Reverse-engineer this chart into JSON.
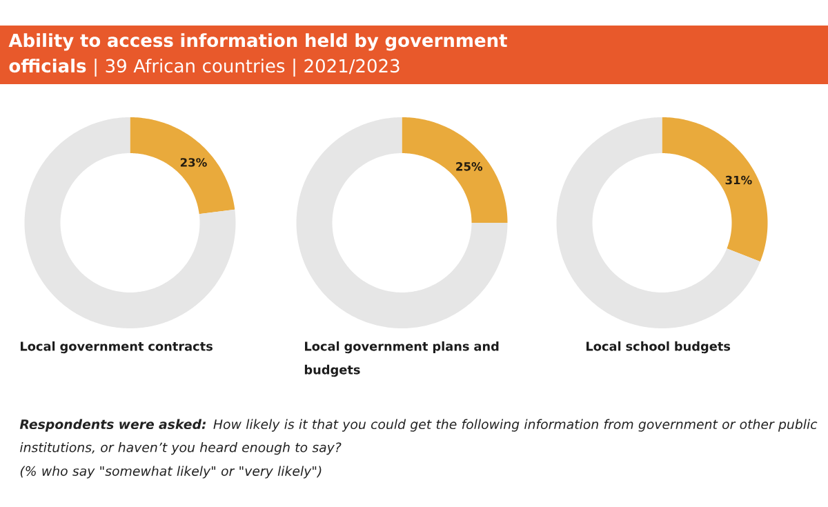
{
  "chart_data": [
    {
      "type": "other",
      "title": "**Ability to access information held by government officials** | 39 African countries | 2021/2023"
    },
    {
      "type": "donut",
      "title": "Local government contracts",
      "categories": [
        null,
        null
      ],
      "values": [
        23,
        77
      ],
      "colors": [
        "#e9aa3c",
        "#e6e6e6"
      ],
      "value_labels": [
        "23%",
        null
      ]
    },
    {
      "type": "donut",
      "title": "Local government plans and budgets",
      "categories": [
        null,
        null
      ],
      "values": [
        25,
        75
      ],
      "colors": [
        "#e9aa3c",
        "#e6e6e6"
      ],
      "value_labels": [
        "25%",
        null
      ]
    },
    {
      "type": "donut",
      "title": "Local school budgets",
      "categories": [
        null,
        null
      ],
      "values": [
        31,
        69
      ],
      "colors": [
        "#e9aa3c",
        "#e6e6e6"
      ],
      "value_labels": [
        "31%",
        null
      ]
    },
    {
      "type": "other",
      "annotations": [
        "**Respondents were asked:** How likely is it that you could get the following information from government or other public institutions, or haven’t you heard enough to say?",
        "(% who say \"somewhat likely\" or \"very likely\")"
      ]
    }
  ]
}
